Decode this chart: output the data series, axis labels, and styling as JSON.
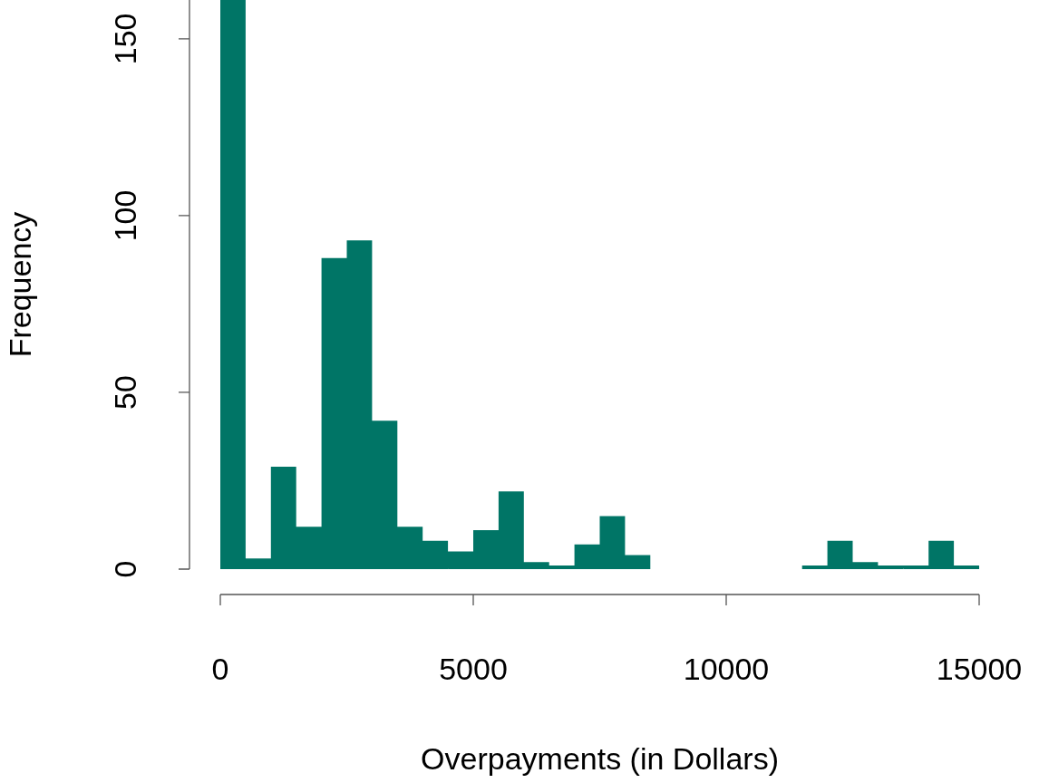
{
  "chart_data": {
    "type": "histogram",
    "xlabel": "Overpayments (in Dollars)",
    "ylabel": "Frequency",
    "bins": [
      0,
      500,
      1000,
      1500,
      2000,
      2500,
      3000,
      3500,
      4000,
      4500,
      5000,
      5500,
      6000,
      6500,
      7000,
      7500,
      8000,
      8500,
      9000,
      9500,
      10000,
      10500,
      11000,
      11500,
      12000,
      12500,
      13000,
      13500,
      14000,
      14500,
      15000
    ],
    "values": [
      161,
      3,
      29,
      12,
      88,
      93,
      42,
      12,
      8,
      5,
      11,
      22,
      2,
      1,
      7,
      15,
      4,
      0,
      0,
      0,
      0,
      0,
      0,
      1,
      8,
      2,
      1,
      1,
      8,
      1
    ],
    "color": "#007566",
    "xlim": [
      0,
      15000
    ],
    "xticks": [
      0,
      5000,
      10000,
      15000
    ],
    "ylim": [
      0,
      161
    ],
    "yticks": [
      0,
      50,
      100,
      150
    ],
    "grid": false,
    "legend": false
  }
}
